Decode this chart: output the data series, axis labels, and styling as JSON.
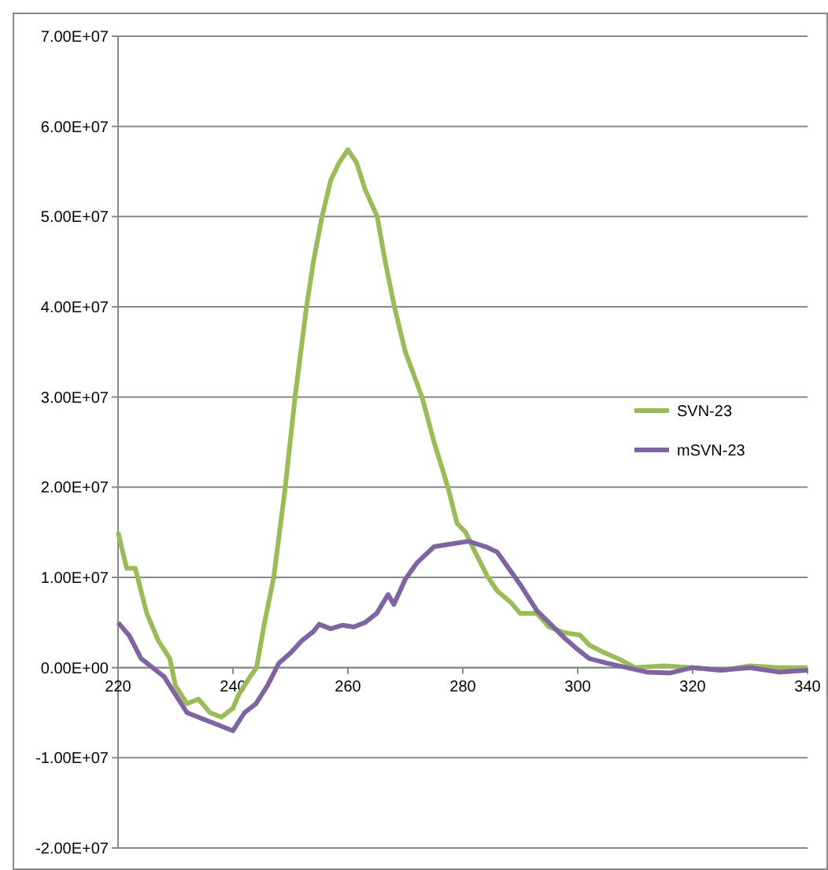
{
  "chart_data": {
    "type": "line",
    "xlim": [
      220,
      340
    ],
    "xticks": [
      220,
      240,
      260,
      280,
      300,
      320,
      340
    ],
    "ylim": [
      -20000000,
      70000000
    ],
    "yticks": [
      {
        "value": -20000000,
        "label": "-2.00E+07"
      },
      {
        "value": -10000000,
        "label": "-1.00E+07"
      },
      {
        "value": 0,
        "label": "0.00E+00"
      },
      {
        "value": 10000000,
        "label": "1.00E+07"
      },
      {
        "value": 20000000,
        "label": "2.00E+07"
      },
      {
        "value": 30000000,
        "label": "3.00E+07"
      },
      {
        "value": 40000000,
        "label": "4.00E+07"
      },
      {
        "value": 50000000,
        "label": "5.00E+07"
      },
      {
        "value": 60000000,
        "label": "6.00E+07"
      },
      {
        "value": 70000000,
        "label": "7.00E+07"
      }
    ],
    "grid": "y",
    "legend": "right",
    "marker": "none",
    "line_style": "solid",
    "series": [
      {
        "name": "SVN-23",
        "color": "#9bbb59",
        "x": [
          220,
          221.5,
          223,
          225,
          227,
          229,
          230,
          232,
          234,
          236,
          238,
          240,
          241,
          243,
          244.1,
          245.5,
          247.1,
          249.1,
          250.8,
          252.8,
          254,
          255.5,
          257,
          258.5,
          260,
          261.5,
          263,
          265.1,
          266.5,
          268.1,
          270,
          272.9,
          275,
          277.4,
          279,
          280.5,
          282,
          284.3,
          286,
          288.4,
          290,
          292.9,
          295,
          297.5,
          300.4,
          302,
          304.8,
          307,
          310,
          315,
          320,
          325,
          330,
          335,
          340
        ],
        "values": [
          15000000,
          11000000,
          11000000,
          6000000,
          3000000,
          1000000,
          -2000000,
          -4000000,
          -3500000,
          -5000000,
          -5500000,
          -4500000,
          -3000000,
          -1000000,
          0,
          5000000,
          10000000,
          20000000,
          30000000,
          40000000,
          45000000,
          50000000,
          54000000,
          56000000,
          57400000,
          56000000,
          53000000,
          50000000,
          45000000,
          40000000,
          35000000,
          30000000,
          25000000,
          20000000,
          16000000,
          15000000,
          13000000,
          10100000,
          8500000,
          7200000,
          6000000,
          6000000,
          4500000,
          3900000,
          3600000,
          2500000,
          1600000,
          1000000,
          0,
          200000,
          0,
          -300000,
          200000,
          0,
          0
        ]
      },
      {
        "name": "mSVN-23",
        "color": "#8064a2",
        "x": [
          220,
          222,
          224,
          226,
          228,
          230,
          232,
          234,
          236,
          238,
          240,
          242,
          244,
          246,
          248,
          250,
          252,
          254,
          255,
          257,
          259,
          261,
          263,
          265,
          267,
          268,
          270,
          272,
          275,
          278,
          281,
          284,
          286,
          288,
          290,
          292.9,
          295,
          297.5,
          300,
          302,
          305,
          308.5,
          312,
          316,
          320,
          325,
          330,
          335,
          340
        ],
        "values": [
          5000000,
          3500000,
          1000000,
          0,
          -1000000,
          -3000000,
          -5000000,
          -5500000,
          -6000000,
          -6500000,
          -7000000,
          -5000000,
          -4000000,
          -2000000,
          500000,
          1600000,
          3000000,
          4000000,
          4800000,
          4300000,
          4700000,
          4500000,
          5000000,
          6000000,
          8100000,
          7000000,
          9800000,
          11600000,
          13400000,
          13700000,
          14000000,
          13400000,
          12800000,
          11000000,
          9200000,
          6300000,
          5000000,
          3400000,
          2000000,
          1000000,
          500000,
          0,
          -500000,
          -600000,
          0,
          -300000,
          0,
          -500000,
          -300000
        ]
      }
    ]
  }
}
